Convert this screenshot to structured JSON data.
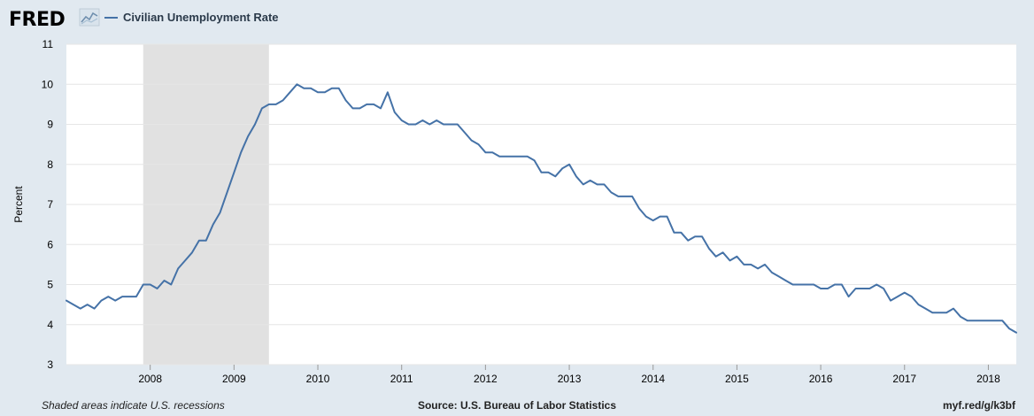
{
  "header": {
    "logo_text": "FRED",
    "logo_icon": "fred-trend-chart-icon",
    "legend_label": "Civilian Unemployment Rate"
  },
  "footer": {
    "note": "Shaded areas indicate U.S. recessions",
    "source": "Source: U.S. Bureau of Labor Statistics",
    "link": "myf.red/g/k3bf"
  },
  "colors": {
    "background": "#e1e9f0",
    "plot_background": "#ffffff",
    "line": "#4572a7",
    "recession": "#e1e1e1",
    "grid": "#e6e6e6"
  },
  "chart_data": {
    "type": "line",
    "title": "",
    "xlabel": "",
    "ylabel": "Percent",
    "ylim": [
      3,
      11
    ],
    "yticks": [
      3,
      4,
      5,
      6,
      7,
      8,
      9,
      10,
      11
    ],
    "xticks": [
      "2008",
      "2009",
      "2010",
      "2011",
      "2012",
      "2013",
      "2014",
      "2015",
      "2016",
      "2017",
      "2018"
    ],
    "xlim": [
      "2007-01",
      "2018-05"
    ],
    "grid": true,
    "recessions": [
      {
        "start": "2007-12",
        "end": "2009-06"
      }
    ],
    "series": [
      {
        "name": "Civilian Unemployment Rate",
        "x": [
          "2007-01",
          "2007-02",
          "2007-03",
          "2007-04",
          "2007-05",
          "2007-06",
          "2007-07",
          "2007-08",
          "2007-09",
          "2007-10",
          "2007-11",
          "2007-12",
          "2008-01",
          "2008-02",
          "2008-03",
          "2008-04",
          "2008-05",
          "2008-06",
          "2008-07",
          "2008-08",
          "2008-09",
          "2008-10",
          "2008-11",
          "2008-12",
          "2009-01",
          "2009-02",
          "2009-03",
          "2009-04",
          "2009-05",
          "2009-06",
          "2009-07",
          "2009-08",
          "2009-09",
          "2009-10",
          "2009-11",
          "2009-12",
          "2010-01",
          "2010-02",
          "2010-03",
          "2010-04",
          "2010-05",
          "2010-06",
          "2010-07",
          "2010-08",
          "2010-09",
          "2010-10",
          "2010-11",
          "2010-12",
          "2011-01",
          "2011-02",
          "2011-03",
          "2011-04",
          "2011-05",
          "2011-06",
          "2011-07",
          "2011-08",
          "2011-09",
          "2011-10",
          "2011-11",
          "2011-12",
          "2012-01",
          "2012-02",
          "2012-03",
          "2012-04",
          "2012-05",
          "2012-06",
          "2012-07",
          "2012-08",
          "2012-09",
          "2012-10",
          "2012-11",
          "2012-12",
          "2013-01",
          "2013-02",
          "2013-03",
          "2013-04",
          "2013-05",
          "2013-06",
          "2013-07",
          "2013-08",
          "2013-09",
          "2013-10",
          "2013-11",
          "2013-12",
          "2014-01",
          "2014-02",
          "2014-03",
          "2014-04",
          "2014-05",
          "2014-06",
          "2014-07",
          "2014-08",
          "2014-09",
          "2014-10",
          "2014-11",
          "2014-12",
          "2015-01",
          "2015-02",
          "2015-03",
          "2015-04",
          "2015-05",
          "2015-06",
          "2015-07",
          "2015-08",
          "2015-09",
          "2015-10",
          "2015-11",
          "2015-12",
          "2016-01",
          "2016-02",
          "2016-03",
          "2016-04",
          "2016-05",
          "2016-06",
          "2016-07",
          "2016-08",
          "2016-09",
          "2016-10",
          "2016-11",
          "2016-12",
          "2017-01",
          "2017-02",
          "2017-03",
          "2017-04",
          "2017-05",
          "2017-06",
          "2017-07",
          "2017-08",
          "2017-09",
          "2017-10",
          "2017-11",
          "2017-12",
          "2018-01",
          "2018-02",
          "2018-03",
          "2018-04",
          "2018-05"
        ],
        "values": [
          4.6,
          4.5,
          4.4,
          4.5,
          4.4,
          4.6,
          4.7,
          4.6,
          4.7,
          4.7,
          4.7,
          5.0,
          5.0,
          4.9,
          5.1,
          5.0,
          5.4,
          5.6,
          5.8,
          6.1,
          6.1,
          6.5,
          6.8,
          7.3,
          7.8,
          8.3,
          8.7,
          9.0,
          9.4,
          9.5,
          9.5,
          9.6,
          9.8,
          10.0,
          9.9,
          9.9,
          9.8,
          9.8,
          9.9,
          9.9,
          9.6,
          9.4,
          9.4,
          9.5,
          9.5,
          9.4,
          9.8,
          9.3,
          9.1,
          9.0,
          9.0,
          9.1,
          9.0,
          9.1,
          9.0,
          9.0,
          9.0,
          8.8,
          8.6,
          8.5,
          8.3,
          8.3,
          8.2,
          8.2,
          8.2,
          8.2,
          8.2,
          8.1,
          7.8,
          7.8,
          7.7,
          7.9,
          8.0,
          7.7,
          7.5,
          7.6,
          7.5,
          7.5,
          7.3,
          7.2,
          7.2,
          7.2,
          6.9,
          6.7,
          6.6,
          6.7,
          6.7,
          6.3,
          6.3,
          6.1,
          6.2,
          6.2,
          5.9,
          5.7,
          5.8,
          5.6,
          5.7,
          5.5,
          5.5,
          5.4,
          5.5,
          5.3,
          5.2,
          5.1,
          5.0,
          5.0,
          5.0,
          5.0,
          4.9,
          4.9,
          5.0,
          5.0,
          4.7,
          4.9,
          4.9,
          4.9,
          5.0,
          4.9,
          4.6,
          4.7,
          4.8,
          4.7,
          4.5,
          4.4,
          4.3,
          4.3,
          4.3,
          4.4,
          4.2,
          4.1,
          4.1,
          4.1,
          4.1,
          4.1,
          4.1,
          3.9,
          3.8
        ]
      }
    ]
  }
}
